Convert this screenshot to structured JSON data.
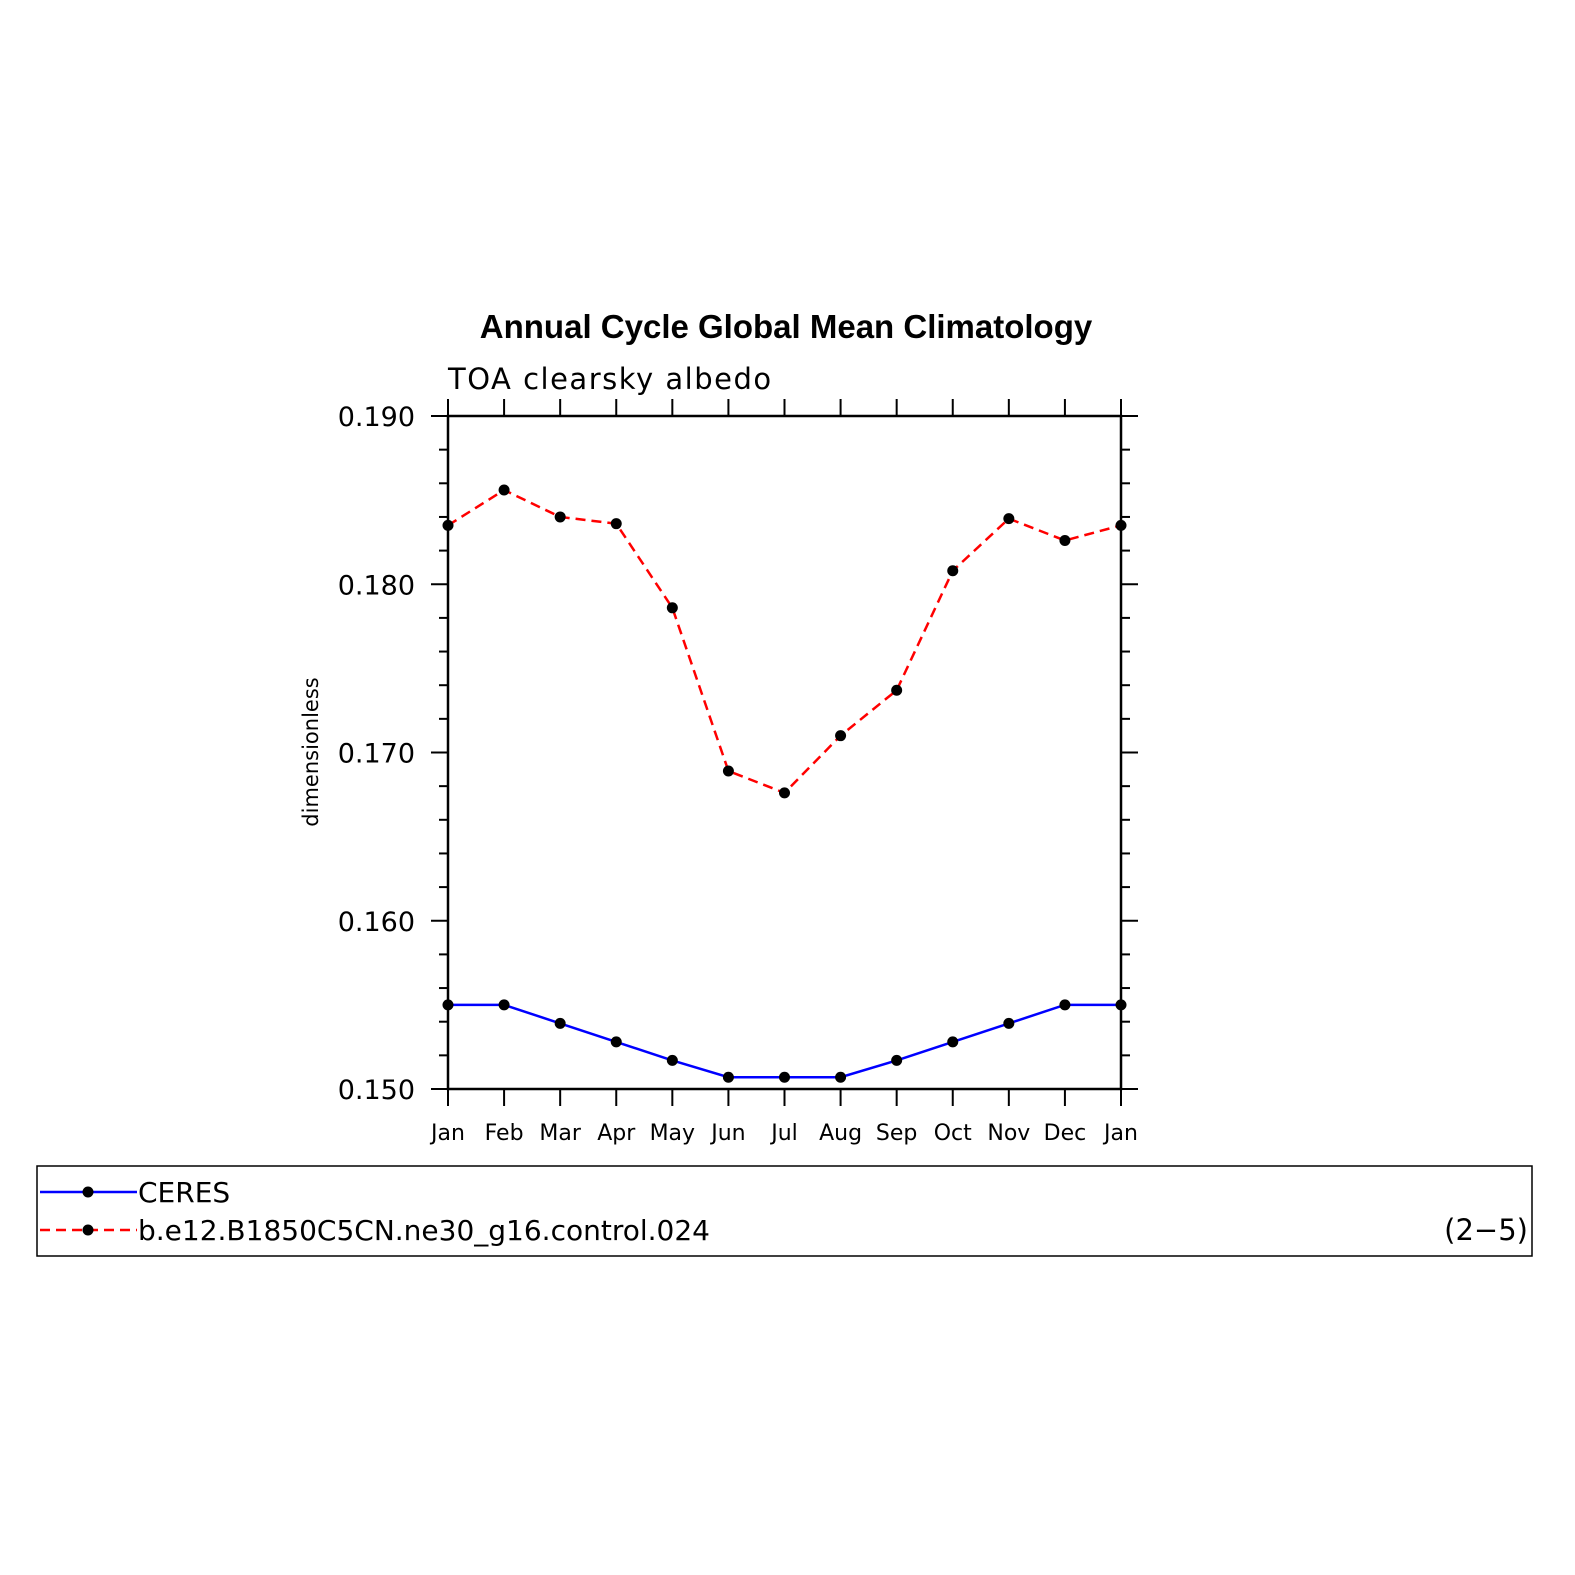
{
  "chart_data": {
    "type": "line",
    "title": "Annual Cycle Global Mean Climatology",
    "subtitle": "TOA clearsky albedo",
    "ylabel": "dimensionless",
    "xlabel": "",
    "categories": [
      "Jan",
      "Feb",
      "Mar",
      "Apr",
      "May",
      "Jun",
      "Jul",
      "Aug",
      "Sep",
      "Oct",
      "Nov",
      "Dec",
      "Jan"
    ],
    "ylim": [
      0.15,
      0.19
    ],
    "yticks": [
      "0.150",
      "0.160",
      "0.170",
      "0.180",
      "0.190"
    ],
    "series": [
      {
        "name": "CERES",
        "color": "#0000ff",
        "dash": "solid",
        "values": [
          0.155,
          0.155,
          0.1539,
          0.1528,
          0.1517,
          0.1507,
          0.1507,
          0.1507,
          0.1517,
          0.1528,
          0.1539,
          0.155,
          0.155
        ]
      },
      {
        "name": "b.e12.B1850C5CN.ne30_g16.control.024",
        "color": "#ff0000",
        "dash": "dashed",
        "values": [
          0.1835,
          0.1856,
          0.184,
          0.1836,
          0.1786,
          0.1689,
          0.1676,
          0.171,
          0.1737,
          0.1808,
          0.1839,
          0.1826,
          0.1835
        ]
      }
    ],
    "legend_placement": "bottom",
    "grid": false,
    "panel_tag": "(2−5)"
  }
}
